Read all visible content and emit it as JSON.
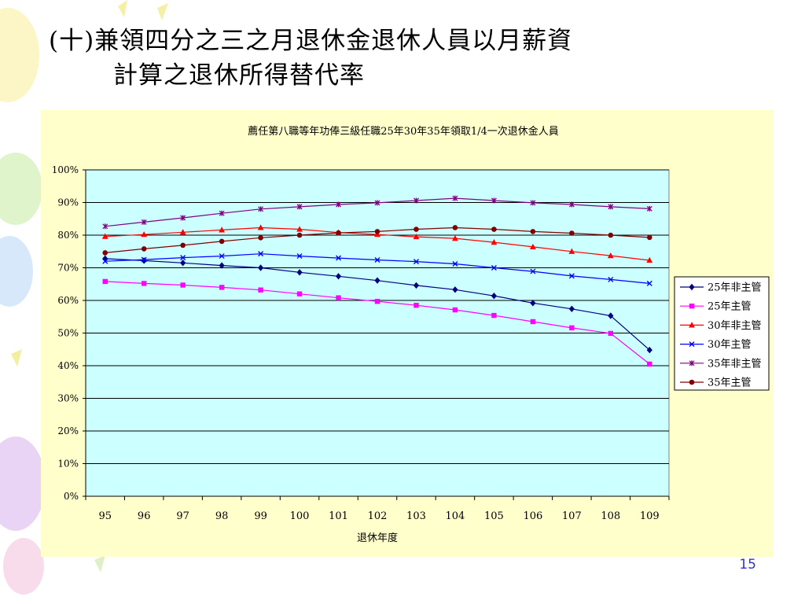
{
  "slide": {
    "title_line1": "(十)兼領四分之三之月退休金退休人員以月薪資",
    "title_line2": "計算之退休所得替代率",
    "page_number": "15"
  },
  "chart_data": {
    "type": "line",
    "title": "薦任第八職等年功俸三級任職25年30年35年領取1/4一次退休金人員",
    "xlabel": "退休年度",
    "ylabel": "",
    "categories": [
      "95",
      "96",
      "97",
      "98",
      "99",
      "100",
      "101",
      "102",
      "103",
      "104",
      "105",
      "106",
      "107",
      "108",
      "109"
    ],
    "ylim": [
      0,
      100
    ],
    "yticks": [
      "0%",
      "10%",
      "20%",
      "30%",
      "40%",
      "50%",
      "60%",
      "70%",
      "80%",
      "90%",
      "100%"
    ],
    "grid": true,
    "legend_position": "right",
    "series": [
      {
        "name": "25年非主管",
        "color": "#000080",
        "marker": "diamond",
        "values": [
          72.8,
          72.2,
          71.5,
          70.7,
          70.0,
          68.6,
          67.4,
          66.1,
          64.6,
          63.3,
          61.4,
          59.2,
          57.4,
          55.3,
          44.8
        ]
      },
      {
        "name": "25年主管",
        "color": "#ff00ff",
        "marker": "square",
        "values": [
          65.8,
          65.2,
          64.7,
          64.0,
          63.2,
          62.0,
          60.8,
          59.7,
          58.5,
          57.1,
          55.4,
          53.5,
          51.6,
          49.9,
          40.5
        ]
      },
      {
        "name": "30年非主管",
        "color": "#ff0000",
        "marker": "triangle",
        "values": [
          79.6,
          80.2,
          80.9,
          81.6,
          82.3,
          81.8,
          80.8,
          80.2,
          79.5,
          79.0,
          77.8,
          76.4,
          75.0,
          73.7,
          72.3
        ]
      },
      {
        "name": "30年主管",
        "color": "#0000ff",
        "marker": "x",
        "values": [
          72.0,
          72.5,
          73.1,
          73.6,
          74.3,
          73.6,
          73.0,
          72.4,
          71.9,
          71.2,
          70.0,
          68.9,
          67.5,
          66.4,
          65.2
        ]
      },
      {
        "name": "35年非主管",
        "color": "#800080",
        "marker": "star",
        "values": [
          82.7,
          84.0,
          85.3,
          86.7,
          88.0,
          88.7,
          89.4,
          89.9,
          90.6,
          91.3,
          90.6,
          89.9,
          89.4,
          88.7,
          88.1
        ]
      },
      {
        "name": "35年主管",
        "color": "#800000",
        "marker": "circle",
        "values": [
          74.6,
          75.8,
          76.9,
          78.1,
          79.2,
          80.0,
          80.7,
          81.1,
          81.8,
          82.3,
          81.8,
          81.1,
          80.6,
          80.0,
          79.3
        ]
      }
    ]
  },
  "colors": {
    "chart_area": "#ffffcc",
    "plot_area": "#ccffff",
    "title_text": "#000000",
    "page_number": "#3333cc"
  }
}
